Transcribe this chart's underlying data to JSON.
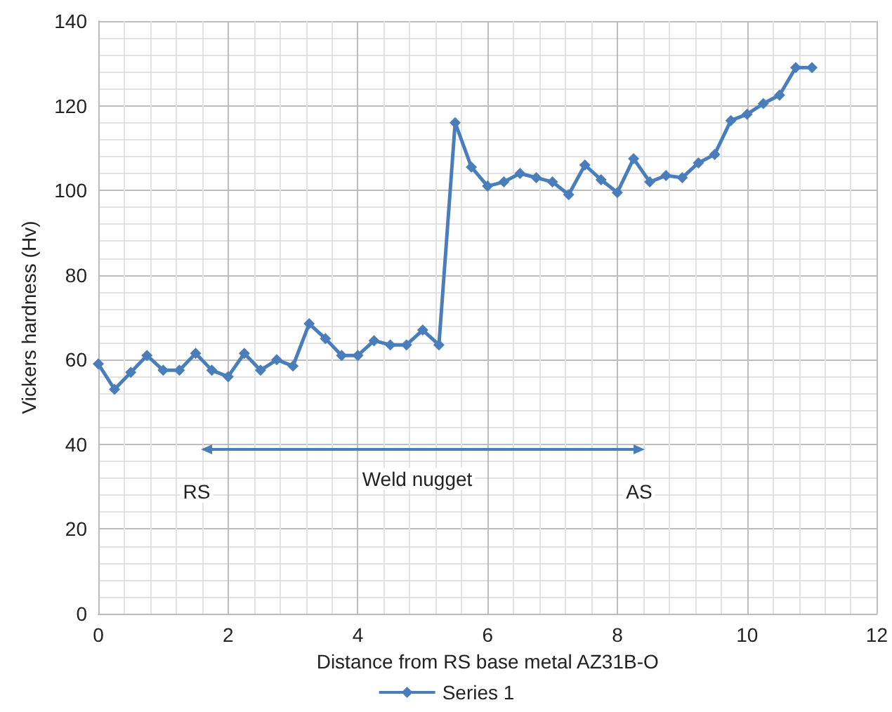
{
  "chart_data": {
    "type": "line",
    "xlabel": "Distance from RS base metal AZ31B-O",
    "ylabel": "Vickers hardness (Hv)",
    "xlim": [
      0,
      12
    ],
    "xticks": [
      0,
      2,
      4,
      6,
      8,
      10,
      12
    ],
    "ylim": [
      0,
      140
    ],
    "yticks": [
      0,
      20,
      40,
      60,
      80,
      100,
      120,
      140
    ],
    "grid": true,
    "legend": "bottom",
    "marker": "diamond",
    "line_style": "solid",
    "x": [
      0,
      0.25,
      0.5,
      0.75,
      1,
      1.25,
      1.5,
      1.75,
      2,
      2.25,
      2.5,
      2.75,
      3,
      3.25,
      3.5,
      3.75,
      4,
      4.25,
      4.5,
      4.75,
      5,
      5.25,
      5.5,
      5.75,
      6,
      6.25,
      6.5,
      6.75,
      7,
      7.25,
      7.5,
      7.75,
      8,
      8.25,
      8.5,
      8.75,
      9,
      9.25,
      9.5,
      9.75,
      10,
      10.25,
      10.5,
      10.75,
      11
    ],
    "series": [
      {
        "name": "Series 1",
        "color": "#4a7ebb",
        "values": [
          59,
          53,
          57,
          61,
          57.5,
          57.5,
          61.5,
          57.5,
          56,
          61.5,
          57.5,
          60,
          58.5,
          68.5,
          65,
          61,
          61,
          64.5,
          63.5,
          63.5,
          67,
          63.5,
          116,
          105.5,
          101,
          102,
          104,
          103,
          102,
          99,
          106,
          102.5,
          99.5,
          107.5,
          102,
          103.5,
          103,
          106.5,
          108.5,
          116.5,
          118,
          120.5,
          122.5,
          129,
          129
        ]
      }
    ],
    "annotations": [
      "RS",
      "Weld nugget",
      "AS"
    ]
  }
}
